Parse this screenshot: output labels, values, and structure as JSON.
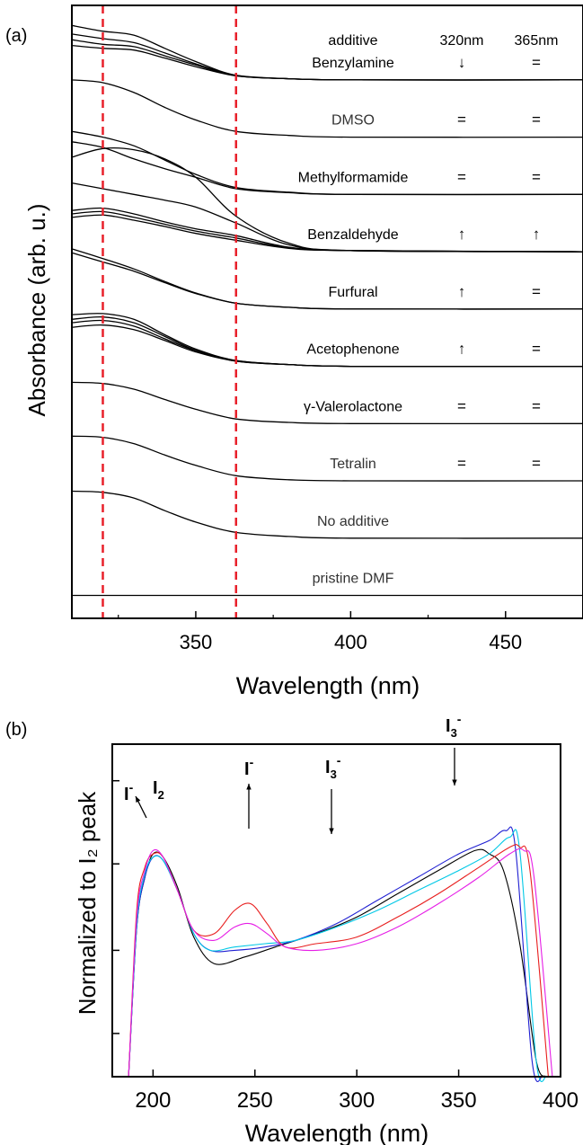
{
  "panels": {
    "a": {
      "panel_label": "(a)",
      "header": {
        "additive": "additive",
        "c320": "320nm",
        "c365": "365nm"
      },
      "rows": [
        {
          "name": "Benzylamine",
          "c320": "↓",
          "c365": "="
        },
        {
          "name": "DMSO",
          "c320": "=",
          "c365": "="
        },
        {
          "name": "Methylformamide",
          "c320": "=",
          "c365": "="
        },
        {
          "name": "Benzaldehyde",
          "c320": "↑",
          "c365": "↑"
        },
        {
          "name": "Furfural",
          "c320": "↑",
          "c365": "="
        },
        {
          "name": "Acetophenone",
          "c320": "↑",
          "c365": "="
        },
        {
          "name": "γ-Valerolactone",
          "c320": "=",
          "c365": "="
        },
        {
          "name": "Tetralin",
          "c320": "=",
          "c365": "="
        },
        {
          "name": "No additive",
          "c320": "",
          "c365": ""
        },
        {
          "name": "pristine DMF",
          "c320": "",
          "c365": ""
        }
      ]
    },
    "b": {
      "panel_label": "(b)",
      "annotations": [
        {
          "label": "I",
          "sup": "-",
          "sub": ""
        },
        {
          "label": "I",
          "sup": "",
          "sub": "2"
        },
        {
          "label": "I",
          "sup": "-",
          "sub": ""
        },
        {
          "label": "I",
          "sup": "-",
          "sub": "3"
        },
        {
          "label": "I",
          "sup": "-",
          "sub": "3"
        }
      ]
    }
  },
  "chart_data": [
    {
      "type": "line",
      "xlabel": "Wavelength (nm)",
      "ylabel": "Absorbance (arb. u.)",
      "xlim": [
        310,
        475
      ],
      "xticks": [
        350,
        400,
        450
      ],
      "xtick_labels": [
        "350",
        "400",
        "450"
      ],
      "yticks_shown": false,
      "reference_lines": [
        {
          "x": 320,
          "color": "#e8202a",
          "style": "dashed"
        },
        {
          "x": 363,
          "color": "#e8202a",
          "style": "dashed"
        }
      ],
      "offset_groups": [
        {
          "name": "Benzylamine",
          "baseline": 9.0,
          "curves": [
            {
              "x": [
                310,
                320,
                330,
                340,
                350,
                363,
                380,
                400,
                475
              ],
              "y": [
                0.95,
                0.85,
                0.78,
                0.55,
                0.32,
                0.08,
                0.02,
                0.0,
                0.0
              ]
            },
            {
              "x": [
                310,
                320,
                330,
                340,
                350,
                363,
                380,
                400,
                475
              ],
              "y": [
                0.8,
                0.72,
                0.65,
                0.47,
                0.28,
                0.08,
                0.02,
                0.0,
                0.0
              ]
            },
            {
              "x": [
                310,
                320,
                330,
                340,
                350,
                363,
                380,
                400,
                475
              ],
              "y": [
                0.7,
                0.62,
                0.58,
                0.42,
                0.26,
                0.07,
                0.02,
                0.0,
                0.0
              ]
            },
            {
              "x": [
                310,
                320,
                330,
                340,
                350,
                363,
                380,
                400,
                475
              ],
              "y": [
                0.6,
                0.55,
                0.52,
                0.38,
                0.23,
                0.07,
                0.02,
                0.0,
                0.0
              ]
            }
          ]
        },
        {
          "name": "DMSO",
          "baseline": 8.0,
          "curves": [
            {
              "x": [
                310,
                320,
                330,
                340,
                350,
                363,
                380,
                400,
                475
              ],
              "y": [
                1.0,
                0.95,
                0.78,
                0.52,
                0.3,
                0.1,
                0.03,
                0.0,
                0.0
              ]
            }
          ]
        },
        {
          "name": "Methylformamide",
          "baseline": 7.0,
          "curves": [
            {
              "x": [
                310,
                320,
                330,
                340,
                350,
                363,
                380,
                400,
                475
              ],
              "y": [
                1.1,
                1.0,
                0.85,
                0.6,
                0.35,
                0.12,
                0.04,
                0.0,
                0.0
              ]
            },
            {
              "x": [
                310,
                320,
                330,
                340,
                350,
                363,
                380,
                400,
                475
              ],
              "y": [
                0.92,
                0.82,
                0.62,
                0.45,
                0.3,
                0.1,
                0.03,
                0.0,
                0.0
              ]
            }
          ]
        },
        {
          "name": "Benzaldehyde",
          "baseline": 6.0,
          "curves": [
            {
              "x": [
                310,
                320,
                330,
                340,
                350,
                363,
                380,
                400,
                475
              ],
              "y": [
                1.65,
                1.8,
                1.78,
                1.62,
                1.3,
                0.62,
                0.15,
                0.02,
                0.0
              ]
            },
            {
              "x": [
                310,
                320,
                330,
                340,
                350,
                363,
                380,
                400,
                475
              ],
              "y": [
                1.2,
                1.1,
                1.0,
                0.9,
                0.78,
                0.5,
                0.12,
                0.02,
                0.0
              ]
            },
            {
              "x": [
                310,
                320,
                330,
                340,
                350,
                363,
                380,
                400,
                475
              ],
              "y": [
                0.72,
                0.76,
                0.66,
                0.52,
                0.4,
                0.28,
                0.08,
                0.02,
                0.0
              ]
            },
            {
              "x": [
                310,
                320,
                330,
                340,
                350,
                363,
                380,
                400,
                475
              ],
              "y": [
                0.66,
                0.7,
                0.6,
                0.48,
                0.36,
                0.24,
                0.07,
                0.02,
                0.0
              ]
            },
            {
              "x": [
                310,
                320,
                330,
                340,
                350,
                363,
                380,
                400,
                475
              ],
              "y": [
                0.6,
                0.64,
                0.55,
                0.44,
                0.32,
                0.2,
                0.06,
                0.02,
                0.0
              ]
            }
          ]
        },
        {
          "name": "Furfural",
          "baseline": 5.0,
          "curves": [
            {
              "x": [
                310,
                320,
                330,
                340,
                350,
                363,
                380,
                400,
                475
              ],
              "y": [
                1.05,
                0.88,
                0.7,
                0.48,
                0.28,
                0.1,
                0.03,
                0.0,
                0.0
              ]
            },
            {
              "x": [
                310,
                320,
                330,
                340,
                350,
                363,
                380,
                400,
                475
              ],
              "y": [
                0.98,
                0.82,
                0.66,
                0.46,
                0.27,
                0.1,
                0.03,
                0.0,
                0.0
              ]
            }
          ]
        },
        {
          "name": "Acetophenone",
          "baseline": 4.0,
          "curves": [
            {
              "x": [
                310,
                320,
                330,
                340,
                350,
                363,
                380,
                400,
                475
              ],
              "y": [
                0.9,
                0.92,
                0.82,
                0.55,
                0.3,
                0.1,
                0.03,
                0.0,
                0.0
              ]
            },
            {
              "x": [
                310,
                320,
                330,
                340,
                350,
                363,
                380,
                400,
                475
              ],
              "y": [
                0.82,
                0.86,
                0.76,
                0.52,
                0.28,
                0.1,
                0.03,
                0.0,
                0.0
              ]
            },
            {
              "x": [
                310,
                320,
                330,
                340,
                350,
                363,
                380,
                400,
                475
              ],
              "y": [
                0.76,
                0.8,
                0.7,
                0.48,
                0.27,
                0.09,
                0.03,
                0.0,
                0.0
              ]
            },
            {
              "x": [
                310,
                320,
                330,
                340,
                350,
                363,
                380,
                400,
                475
              ],
              "y": [
                0.68,
                0.72,
                0.64,
                0.45,
                0.25,
                0.09,
                0.03,
                0.0,
                0.0
              ]
            }
          ]
        },
        {
          "name": "γ-Valerolactone",
          "baseline": 3.0,
          "curves": [
            {
              "x": [
                310,
                320,
                330,
                340,
                350,
                363,
                380,
                400,
                475
              ],
              "y": [
                0.72,
                0.7,
                0.6,
                0.42,
                0.25,
                0.08,
                0.02,
                0.0,
                0.0
              ]
            }
          ]
        },
        {
          "name": "Tetralin",
          "baseline": 2.0,
          "curves": [
            {
              "x": [
                310,
                320,
                330,
                340,
                350,
                363,
                380,
                400,
                475
              ],
              "y": [
                0.78,
                0.76,
                0.65,
                0.45,
                0.27,
                0.09,
                0.02,
                0.0,
                0.0
              ]
            }
          ]
        },
        {
          "name": "No additive",
          "baseline": 1.0,
          "curves": [
            {
              "x": [
                310,
                320,
                330,
                340,
                350,
                363,
                380,
                400,
                475
              ],
              "y": [
                0.82,
                0.8,
                0.7,
                0.48,
                0.28,
                0.1,
                0.03,
                0.0,
                0.0
              ]
            }
          ]
        },
        {
          "name": "pristine DMF",
          "baseline": 0.0,
          "curves": [
            {
              "x": [
                310,
                475
              ],
              "y": [
                0.0,
                0.0
              ]
            }
          ]
        }
      ]
    },
    {
      "type": "line",
      "xlabel": "Wavelength (nm)",
      "ylabel": "Normalized to I₂ peak",
      "xlim": [
        180,
        400
      ],
      "xticks": [
        200,
        250,
        300,
        350,
        400
      ],
      "xtick_labels": [
        "200",
        "250",
        "300",
        "350",
        "400"
      ],
      "yticks_shown": false,
      "series": [
        {
          "color": "#000000",
          "x": [
            188,
            192,
            196,
            200,
            205,
            212,
            220,
            230,
            245,
            260,
            280,
            300,
            320,
            340,
            358,
            365,
            372,
            380,
            388,
            393
          ],
          "y": [
            0.0,
            0.45,
            0.6,
            0.67,
            0.66,
            0.57,
            0.42,
            0.34,
            0.36,
            0.39,
            0.43,
            0.48,
            0.55,
            0.62,
            0.68,
            0.67,
            0.62,
            0.4,
            0.05,
            0.0
          ]
        },
        {
          "color": "#1f1fd2",
          "x": [
            188,
            192,
            196,
            200,
            205,
            212,
            220,
            228,
            240,
            255,
            270,
            290,
            310,
            330,
            350,
            365,
            373,
            378,
            386,
            391
          ],
          "y": [
            0.0,
            0.45,
            0.6,
            0.66,
            0.65,
            0.56,
            0.43,
            0.38,
            0.38,
            0.39,
            0.41,
            0.46,
            0.53,
            0.6,
            0.67,
            0.71,
            0.74,
            0.68,
            0.05,
            0.0
          ]
        },
        {
          "color": "#00c8e6",
          "x": [
            188,
            192,
            196,
            200,
            205,
            212,
            220,
            228,
            240,
            255,
            270,
            290,
            310,
            330,
            350,
            365,
            375,
            380,
            388,
            393
          ],
          "y": [
            0.0,
            0.46,
            0.61,
            0.66,
            0.65,
            0.56,
            0.43,
            0.38,
            0.39,
            0.4,
            0.41,
            0.45,
            0.5,
            0.56,
            0.62,
            0.67,
            0.72,
            0.68,
            0.05,
            0.0
          ]
        },
        {
          "color": "#e81e1e",
          "x": [
            188,
            192,
            196,
            200,
            205,
            212,
            220,
            230,
            240,
            248,
            256,
            265,
            280,
            300,
            320,
            340,
            360,
            375,
            380,
            385,
            394
          ],
          "y": [
            0.0,
            0.5,
            0.63,
            0.67,
            0.66,
            0.56,
            0.44,
            0.43,
            0.5,
            0.52,
            0.46,
            0.39,
            0.4,
            0.42,
            0.48,
            0.55,
            0.63,
            0.69,
            0.69,
            0.62,
            0.0
          ]
        },
        {
          "color": "#e61ee6",
          "x": [
            188,
            192,
            196,
            200,
            205,
            212,
            220,
            230,
            240,
            248,
            256,
            265,
            280,
            300,
            320,
            340,
            360,
            375,
            382,
            387,
            396
          ],
          "y": [
            0.0,
            0.48,
            0.62,
            0.68,
            0.66,
            0.56,
            0.44,
            0.41,
            0.45,
            0.46,
            0.43,
            0.39,
            0.38,
            0.4,
            0.45,
            0.52,
            0.6,
            0.67,
            0.68,
            0.6,
            0.0
          ]
        }
      ]
    }
  ]
}
